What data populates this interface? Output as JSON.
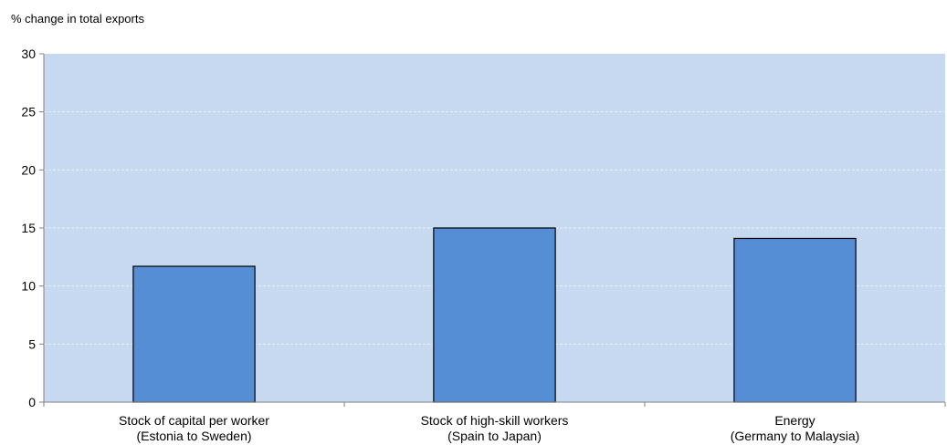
{
  "chart_data": {
    "type": "bar",
    "ylabel": "% change in total exports",
    "ylim": [
      0,
      30
    ],
    "yticks": [
      0,
      5,
      10,
      15,
      20,
      25,
      30
    ],
    "categories": [
      [
        "Stock of capital per worker",
        "(Estonia to Sweden)"
      ],
      [
        "Stock of high-skill workers",
        "(Spain to Japan)"
      ],
      [
        "Energy",
        "(Germany to Malaysia)"
      ]
    ],
    "values": [
      11.7,
      15.0,
      14.1
    ],
    "grid": true,
    "legend": "none",
    "colors": {
      "plot_background": "#c6d9f1",
      "bar_fill": "#558ed5",
      "bar_stroke": "#000000",
      "grid": "#e8eef8",
      "axis": "#808080"
    }
  }
}
